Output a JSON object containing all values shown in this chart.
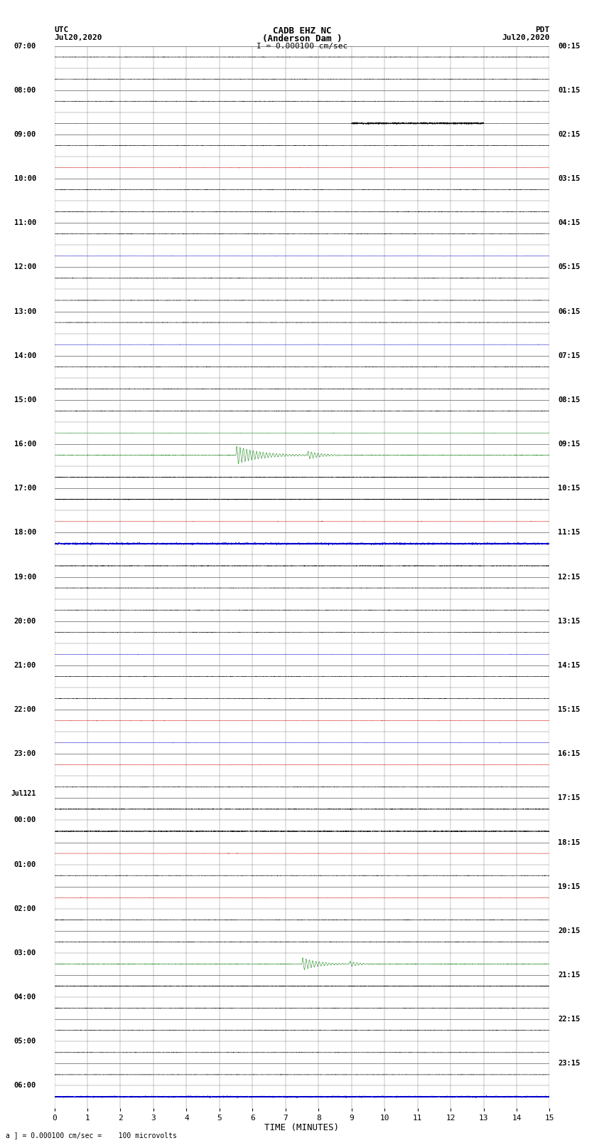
{
  "title_center": "CADB EHZ NC\n(Anderson Dam )",
  "title_left": "UTC\nJul20,2020",
  "title_right": "PDT\nJul20,2020",
  "scale_label": "I = 0.000100 cm/sec",
  "bottom_label": "a ] = 0.000100 cm/sec =    100 microvolts",
  "xlabel": "TIME (MINUTES)",
  "xticks": [
    0,
    1,
    2,
    3,
    4,
    5,
    6,
    7,
    8,
    9,
    10,
    11,
    12,
    13,
    14,
    15
  ],
  "left_times": [
    "07:00",
    "",
    "08:00",
    "",
    "09:00",
    "",
    "10:00",
    "",
    "11:00",
    "",
    "12:00",
    "",
    "13:00",
    "",
    "14:00",
    "",
    "15:00",
    "",
    "16:00",
    "",
    "17:00",
    "",
    "18:00",
    "",
    "19:00",
    "",
    "20:00",
    "",
    "21:00",
    "",
    "22:00",
    "",
    "23:00",
    "",
    "Jul121",
    "00:00",
    "",
    "01:00",
    "",
    "02:00",
    "",
    "03:00",
    "",
    "04:00",
    "",
    "05:00",
    "",
    "06:00",
    ""
  ],
  "right_times": [
    "00:15",
    "",
    "01:15",
    "",
    "02:15",
    "",
    "03:15",
    "",
    "04:15",
    "",
    "05:15",
    "",
    "06:15",
    "",
    "07:15",
    "",
    "08:15",
    "",
    "09:15",
    "",
    "10:15",
    "",
    "11:15",
    "",
    "12:15",
    "",
    "13:15",
    "",
    "14:15",
    "",
    "15:15",
    "",
    "16:15",
    "",
    "17:15",
    "",
    "18:15",
    "",
    "19:15",
    "",
    "20:15",
    "",
    "21:15",
    "",
    "22:15",
    "",
    "23:15",
    ""
  ],
  "n_rows": 48,
  "minutes_per_row": 15,
  "background_color": "#ffffff",
  "grid_color": "#777777",
  "signal_color_black": "#000000",
  "signal_color_blue": "#0000cc",
  "signal_color_red": "#cc0000",
  "signal_color_green": "#007700",
  "fig_width": 8.5,
  "fig_height": 16.13
}
